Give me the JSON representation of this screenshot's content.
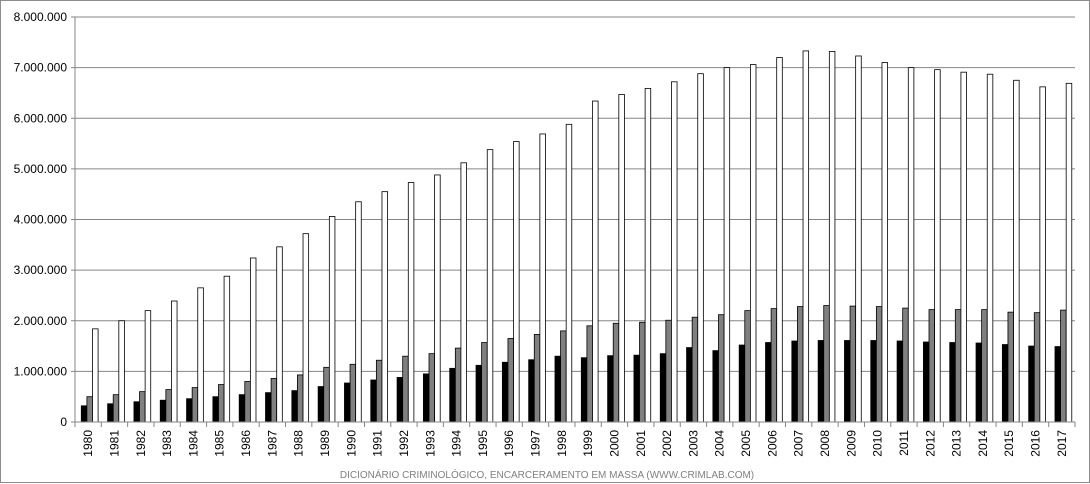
{
  "chart_data": {
    "type": "bar",
    "title": "",
    "xlabel": "",
    "ylabel": "",
    "ylim": [
      0,
      8000000
    ],
    "y_ticks": [
      0,
      1000000,
      2000000,
      3000000,
      4000000,
      5000000,
      6000000,
      7000000,
      8000000
    ],
    "y_tick_labels": [
      "0",
      "1.000.000",
      "2.000.000",
      "3.000.000",
      "4.000.000",
      "5.000.000",
      "6.000.000",
      "7.000.000",
      "8.000.000"
    ],
    "grid": "horizontal",
    "legend": "none",
    "categories": [
      "1980",
      "1981",
      "1982",
      "1983",
      "1984",
      "1985",
      "1986",
      "1987",
      "1988",
      "1989",
      "1990",
      "1991",
      "1992",
      "1993",
      "1994",
      "1995",
      "1996",
      "1997",
      "1998",
      "1999",
      "2000",
      "2001",
      "2002",
      "2003",
      "2004",
      "2005",
      "2006",
      "2007",
      "2008",
      "2009",
      "2010",
      "2011",
      "2012",
      "2013",
      "2014",
      "2015",
      "2016",
      "2017"
    ],
    "series": [
      {
        "color": "#000000",
        "values": [
          320000,
          360000,
          400000,
          430000,
          460000,
          500000,
          540000,
          580000,
          620000,
          700000,
          770000,
          830000,
          880000,
          950000,
          1060000,
          1120000,
          1180000,
          1230000,
          1300000,
          1270000,
          1310000,
          1320000,
          1350000,
          1470000,
          1410000,
          1520000,
          1570000,
          1600000,
          1610000,
          1610000,
          1610000,
          1600000,
          1580000,
          1570000,
          1560000,
          1530000,
          1500000,
          1490000
        ]
      },
      {
        "color": "#808080",
        "values": [
          500000,
          540000,
          600000,
          640000,
          680000,
          740000,
          800000,
          860000,
          930000,
          1080000,
          1140000,
          1220000,
          1300000,
          1350000,
          1460000,
          1570000,
          1650000,
          1730000,
          1800000,
          1900000,
          1950000,
          1970000,
          2010000,
          2070000,
          2120000,
          2200000,
          2240000,
          2280000,
          2300000,
          2290000,
          2280000,
          2250000,
          2220000,
          2220000,
          2220000,
          2170000,
          2160000,
          2210000
        ]
      },
      {
        "color": "#ffffff",
        "values": [
          1840000,
          2000000,
          2200000,
          2390000,
          2650000,
          2880000,
          3240000,
          3460000,
          3720000,
          4060000,
          4350000,
          4550000,
          4730000,
          4880000,
          5120000,
          5380000,
          5540000,
          5690000,
          5880000,
          6340000,
          6470000,
          6590000,
          6720000,
          6880000,
          7000000,
          7060000,
          7200000,
          7330000,
          7320000,
          7230000,
          7100000,
          7000000,
          6960000,
          6910000,
          6870000,
          6750000,
          6620000,
          6690000
        ]
      }
    ]
  },
  "footer_text": "DICIONÁRIO CRIMINOLÓGICO, ENCARCERAMENTO EM MASSA (WWW.CRIMLAB.COM)"
}
